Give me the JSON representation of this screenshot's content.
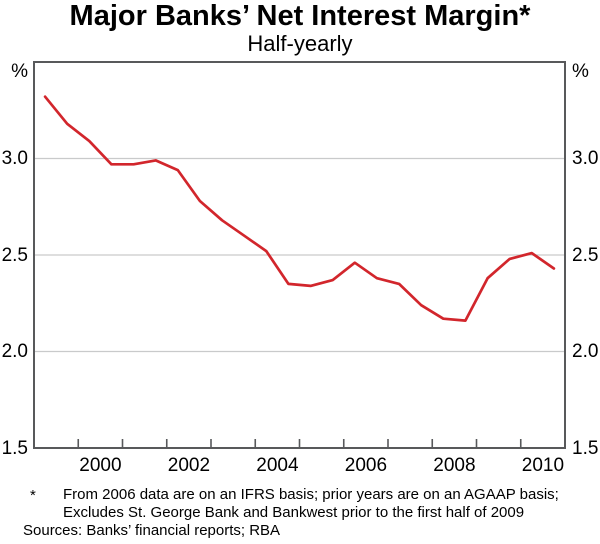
{
  "page": {
    "title": "Major Banks’ Net Interest Margin*",
    "subtitle": "Half-yearly"
  },
  "chart_data": {
    "type": "line",
    "title": "Major Banks’ Net Interest Margin*",
    "subtitle": "Half-yearly",
    "unit_left": "%",
    "unit_right": "%",
    "x_range": [
      1999,
      2011
    ],
    "y_range": [
      1.5,
      3.5
    ],
    "grid": "horizontal-only",
    "y_gridlines": [
      2.0,
      2.5,
      3.0
    ],
    "y_ticks": [
      {
        "value": 3.0,
        "label": "3.0"
      },
      {
        "value": 2.5,
        "label": "2.5"
      },
      {
        "value": 2.0,
        "label": "2.0"
      },
      {
        "value": 1.5,
        "label": "1.5"
      }
    ],
    "x_tick_years": [
      2000,
      2001,
      2002,
      2003,
      2004,
      2005,
      2006,
      2007,
      2008,
      2009,
      2010
    ],
    "x_labels": [
      {
        "center": 2000.5,
        "text": "2000"
      },
      {
        "center": 2002.5,
        "text": "2002"
      },
      {
        "center": 2004.5,
        "text": "2004"
      },
      {
        "center": 2006.5,
        "text": "2006"
      },
      {
        "center": 2008.5,
        "text": "2008"
      },
      {
        "center": 2010.5,
        "text": "2010"
      }
    ],
    "series": [
      {
        "name": "Major banks’ net interest margin (%)",
        "color": "#d2262c",
        "periods": [
          "1999 H1",
          "1999 H2",
          "2000 H1",
          "2000 H2",
          "2001 H1",
          "2001 H2",
          "2002 H1",
          "2002 H2",
          "2003 H1",
          "2003 H2",
          "2004 H1",
          "2004 H2",
          "2005 H1",
          "2005 H2",
          "2006 H1",
          "2006 H2",
          "2007 H1",
          "2007 H2",
          "2008 H1",
          "2008 H2",
          "2009 H1",
          "2009 H2",
          "2010 H1",
          "2010 H2"
        ],
        "x": [
          1999.25,
          1999.75,
          2000.25,
          2000.75,
          2001.25,
          2001.75,
          2002.25,
          2002.75,
          2003.25,
          2003.75,
          2004.25,
          2004.75,
          2005.25,
          2005.75,
          2006.25,
          2006.75,
          2007.25,
          2007.75,
          2008.25,
          2008.75,
          2009.25,
          2009.75,
          2010.25,
          2010.75
        ],
        "values": [
          3.32,
          3.18,
          3.09,
          2.97,
          2.97,
          2.99,
          2.94,
          2.78,
          2.68,
          2.6,
          2.52,
          2.35,
          2.34,
          2.37,
          2.46,
          2.38,
          2.35,
          2.24,
          2.17,
          2.16,
          2.38,
          2.48,
          2.51,
          2.43
        ]
      }
    ]
  },
  "footnotes": {
    "marker": "*",
    "lines": [
      "From 2006 data are on an IFRS basis; prior years are on an AGAAP basis;",
      "Excludes St. George Bank and Bankwest prior to the first half of 2009"
    ],
    "sources": "Sources: Banks’ financial reports; RBA"
  },
  "colors": {
    "line": "#d2262c",
    "frame": "#58595b",
    "gridline": "#c9cacb",
    "text": "#000000",
    "background": "#ffffff"
  }
}
